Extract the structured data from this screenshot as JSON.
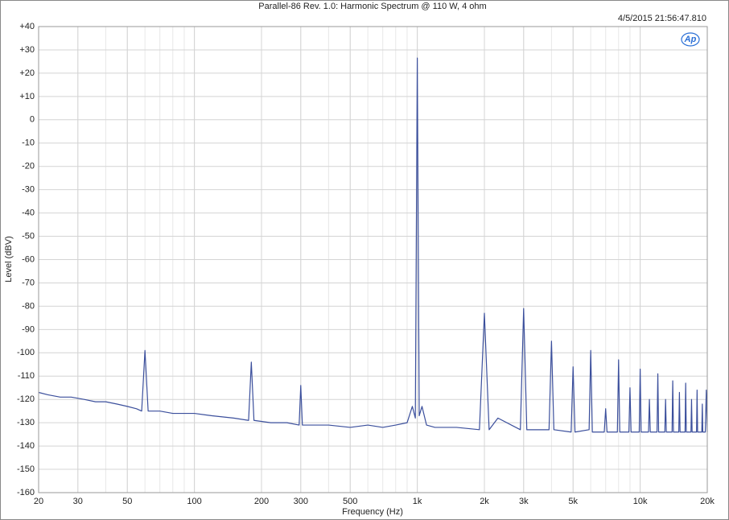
{
  "chart_data": {
    "type": "line",
    "title": "Parallel-86 Rev. 1.0: Harmonic Spectrum @ 110 W, 4 ohm",
    "timestamp": "4/5/2015 21:56:47.810",
    "logo": "Ap",
    "x_label": "Frequency (Hz)",
    "y_label": "Level (dBV)",
    "x_log": true,
    "grid": true,
    "minor_grid": true,
    "xlim": [
      20,
      20000
    ],
    "ylim": [
      -160,
      40
    ],
    "xticks": [
      20,
      30,
      50,
      100,
      200,
      300,
      500,
      {
        "value": 1000,
        "label": "1k"
      },
      {
        "value": 2000,
        "label": "2k"
      },
      {
        "value": 3000,
        "label": "3k"
      },
      {
        "value": 5000,
        "label": "5k"
      },
      {
        "value": 10000,
        "label": "10k"
      },
      {
        "value": 20000,
        "label": "20k"
      }
    ],
    "yticks": [
      {
        "value": 40,
        "label": "+40"
      },
      {
        "value": 30,
        "label": "+30"
      },
      {
        "value": 20,
        "label": "+20"
      },
      {
        "value": 10,
        "label": "+10"
      },
      0,
      -10,
      -20,
      -30,
      -40,
      -50,
      -60,
      -70,
      -80,
      -90,
      -100,
      -110,
      -120,
      -130,
      -140,
      -150,
      -160
    ],
    "x": [
      20,
      22,
      25,
      28,
      32,
      36,
      40,
      45,
      50,
      55,
      58,
      60,
      62,
      70,
      80,
      100,
      120,
      150,
      175,
      180,
      185,
      220,
      260,
      295,
      300,
      305,
      400,
      500,
      600,
      700,
      800,
      900,
      950,
      980,
      1000,
      1020,
      1050,
      1100,
      1200,
      1500,
      1900,
      2000,
      2100,
      2300,
      2900,
      3000,
      3100,
      3900,
      4000,
      4100,
      4900,
      5000,
      5100,
      5900,
      6000,
      6100,
      6900,
      7000,
      7100,
      7900,
      8000,
      8100,
      8900,
      9000,
      9100,
      9900,
      10000,
      10100,
      10900,
      11000,
      11100,
      11900,
      12000,
      12100,
      12900,
      13000,
      13100,
      13900,
      14000,
      14100,
      14900,
      15000,
      15100,
      15900,
      16000,
      16100,
      16900,
      17000,
      17100,
      17900,
      18000,
      18100,
      18900,
      19000,
      19100,
      19600,
      19800,
      20000
    ],
    "series": [
      {
        "color": "#3b4f9c",
        "values": [
          -117,
          -118,
          -119,
          -119,
          -120,
          -121,
          -121,
          -122,
          -123,
          -124,
          -125,
          -99,
          -125,
          -125,
          -126,
          -126,
          -127,
          -128,
          -129,
          -104,
          -129,
          -130,
          -130,
          -131,
          -114,
          -131,
          -131,
          -132,
          -131,
          -132,
          -131,
          -130,
          -123,
          -128,
          26.5,
          -127,
          -123,
          -131,
          -132,
          -132,
          -133,
          -83,
          -133,
          -128,
          -133,
          -81,
          -133,
          -133,
          -95,
          -133,
          -134,
          -106,
          -134,
          -133,
          -99,
          -134,
          -134,
          -124,
          -134,
          -134,
          -103,
          -134,
          -134,
          -115,
          -134,
          -134,
          -107,
          -134,
          -134,
          -120,
          -134,
          -134,
          -109,
          -134,
          -134,
          -120,
          -134,
          -134,
          -112,
          -134,
          -134,
          -117,
          -134,
          -134,
          -113,
          -134,
          -134,
          -120,
          -134,
          -134,
          -116,
          -134,
          -134,
          -122,
          -134,
          -134,
          -116,
          -134
        ]
      }
    ]
  }
}
